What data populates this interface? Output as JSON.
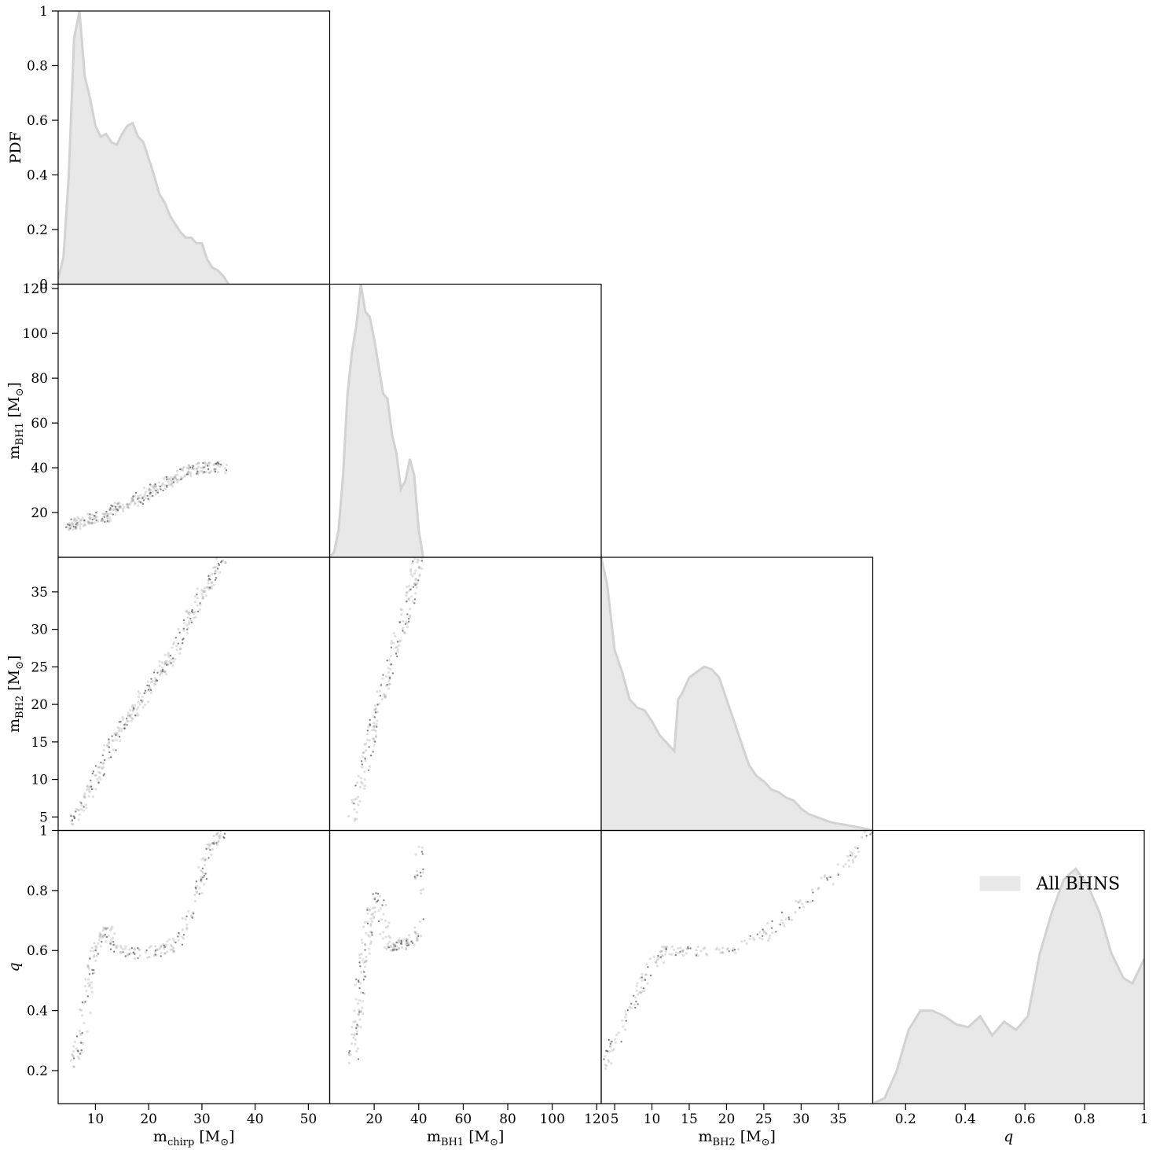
{
  "chart_data": {
    "type": "corner",
    "variables": [
      {
        "key": "mchirp",
        "label_main": "m",
        "label_sub": "chirp",
        "label_unit": " [M",
        "label_tail": "]",
        "lim": [
          3,
          54
        ],
        "ticks": [
          10,
          20,
          30,
          40,
          50
        ]
      },
      {
        "key": "mBH1",
        "label_main": "m",
        "label_sub": "BH1",
        "label_unit": " [M",
        "label_tail": "]",
        "lim": [
          0,
          122
        ],
        "ticks": [
          20,
          40,
          60,
          80,
          100,
          120
        ]
      },
      {
        "key": "mBH2",
        "label_main": "m",
        "label_sub": "BH2",
        "label_unit": " [M",
        "label_tail": "]",
        "lim": [
          3.2,
          39.6
        ],
        "ticks": [
          5,
          10,
          15,
          20,
          25,
          30,
          35
        ]
      },
      {
        "key": "q",
        "label_main": "q",
        "label_sub": "",
        "label_unit": "",
        "label_tail": "",
        "lim": [
          0.09,
          1.0
        ],
        "ticks": [
          0.2,
          0.4,
          0.6,
          0.8,
          1.0
        ]
      }
    ],
    "pdf_axis": {
      "label": "PDF",
      "lim": [
        0,
        1.0
      ],
      "ticks": [
        0.0,
        0.2,
        0.4,
        0.6,
        0.8,
        1.0
      ]
    },
    "row_axes": [
      {
        "ticks": [
          0.0,
          0.2,
          0.4,
          0.6,
          0.8,
          1.0
        ]
      },
      {
        "ticks": [
          20,
          40,
          60,
          80,
          100,
          120
        ]
      },
      {
        "ticks": [
          5,
          10,
          15,
          20,
          25,
          30,
          35
        ]
      },
      {
        "ticks": [
          0.2,
          0.4,
          0.6,
          0.8,
          1.0
        ]
      }
    ],
    "legend": {
      "label": "All BHNS",
      "position": "upper right",
      "color": "#e8e8e8"
    },
    "colors": {
      "hist_fill": "#e8e8e8",
      "hist_line": "#d2d2d2",
      "scatter": "#707070"
    },
    "histograms": {
      "mchirp": {
        "x": [
          3,
          4,
          5,
          6,
          7,
          8,
          9,
          10,
          11,
          12,
          13,
          14,
          15,
          16,
          17,
          18,
          19,
          20,
          21,
          22,
          23,
          24,
          25,
          26,
          27,
          28,
          29,
          30,
          31,
          32,
          33,
          34,
          35
        ],
        "y": [
          0.02,
          0.1,
          0.4,
          0.9,
          1.0,
          0.76,
          0.68,
          0.58,
          0.54,
          0.55,
          0.52,
          0.51,
          0.55,
          0.58,
          0.59,
          0.54,
          0.52,
          0.46,
          0.4,
          0.33,
          0.3,
          0.25,
          0.22,
          0.19,
          0.17,
          0.17,
          0.15,
          0.15,
          0.09,
          0.06,
          0.05,
          0.03,
          0.0
        ]
      },
      "mBH1": {
        "x": [
          0,
          2,
          4,
          6,
          8,
          10,
          12,
          14,
          16,
          18,
          20,
          22,
          24,
          26,
          28,
          30,
          32,
          34,
          36,
          38,
          40,
          42
        ],
        "y": [
          0.0,
          0.02,
          0.1,
          0.3,
          0.6,
          0.75,
          0.85,
          1.0,
          0.9,
          0.88,
          0.8,
          0.7,
          0.6,
          0.58,
          0.45,
          0.38,
          0.25,
          0.28,
          0.36,
          0.3,
          0.1,
          0.0
        ]
      },
      "mBH2": {
        "x": [
          3.2,
          4,
          5,
          6,
          7,
          8,
          9,
          10,
          11,
          12,
          13,
          13.5,
          14,
          15,
          16,
          17,
          18,
          19,
          20,
          21,
          22,
          23,
          24,
          25,
          26,
          27,
          28,
          29,
          30,
          31,
          32,
          33,
          34,
          35,
          36,
          37,
          38,
          39.6
        ],
        "y": [
          1.0,
          0.9,
          0.66,
          0.58,
          0.48,
          0.45,
          0.44,
          0.4,
          0.35,
          0.32,
          0.29,
          0.48,
          0.5,
          0.56,
          0.58,
          0.6,
          0.59,
          0.56,
          0.48,
          0.4,
          0.32,
          0.24,
          0.2,
          0.18,
          0.15,
          0.14,
          0.12,
          0.11,
          0.08,
          0.06,
          0.05,
          0.04,
          0.03,
          0.025,
          0.02,
          0.015,
          0.01,
          0.0
        ]
      },
      "q": {
        "x": [
          0.09,
          0.13,
          0.17,
          0.21,
          0.25,
          0.29,
          0.33,
          0.37,
          0.41,
          0.45,
          0.49,
          0.53,
          0.57,
          0.61,
          0.65,
          0.69,
          0.73,
          0.77,
          0.81,
          0.85,
          0.89,
          0.93,
          0.96,
          1.0
        ],
        "y": [
          0.0,
          0.02,
          0.12,
          0.27,
          0.34,
          0.34,
          0.32,
          0.29,
          0.28,
          0.32,
          0.25,
          0.3,
          0.27,
          0.32,
          0.55,
          0.7,
          0.82,
          0.86,
          0.8,
          0.7,
          0.55,
          0.46,
          0.44,
          0.53
        ]
      }
    },
    "scatter_density": {
      "mchirp_vs_mBH1": [
        [
          5,
          14
        ],
        [
          6,
          15
        ],
        [
          8,
          16
        ],
        [
          10,
          18
        ],
        [
          12,
          17
        ],
        [
          14,
          22
        ],
        [
          16,
          24
        ],
        [
          18,
          26
        ],
        [
          20,
          29
        ],
        [
          22,
          31
        ],
        [
          24,
          34
        ],
        [
          26,
          37
        ],
        [
          28,
          39
        ],
        [
          30,
          40
        ],
        [
          32,
          40
        ],
        [
          34,
          40
        ]
      ],
      "mchirp_vs_mBH2": [
        [
          5,
          4
        ],
        [
          8,
          7
        ],
        [
          10,
          10
        ],
        [
          12,
          13
        ],
        [
          14,
          16
        ],
        [
          16,
          18
        ],
        [
          18,
          20
        ],
        [
          20,
          22
        ],
        [
          22,
          24
        ],
        [
          24,
          26
        ],
        [
          26,
          29
        ],
        [
          28,
          32
        ],
        [
          30,
          35
        ],
        [
          32,
          37
        ],
        [
          34,
          39.6
        ]
      ],
      "mBH1_vs_mBH2": [
        [
          10,
          5
        ],
        [
          14,
          10
        ],
        [
          18,
          15
        ],
        [
          20,
          18
        ],
        [
          24,
          22
        ],
        [
          28,
          26
        ],
        [
          32,
          30
        ],
        [
          36,
          34
        ],
        [
          38,
          37
        ],
        [
          40,
          39.6
        ]
      ],
      "mchirp_vs_q": [
        [
          6,
          0.22
        ],
        [
          7,
          0.3
        ],
        [
          9,
          0.5
        ],
        [
          10,
          0.6
        ],
        [
          12,
          0.68
        ],
        [
          14,
          0.6
        ],
        [
          18,
          0.59
        ],
        [
          22,
          0.6
        ],
        [
          25,
          0.62
        ],
        [
          28,
          0.72
        ],
        [
          30,
          0.85
        ],
        [
          32,
          0.95
        ],
        [
          34,
          1.0
        ]
      ],
      "mBH1_vs_q": [
        [
          10,
          0.22
        ],
        [
          12,
          0.35
        ],
        [
          14,
          0.5
        ],
        [
          16,
          0.6
        ],
        [
          18,
          0.7
        ],
        [
          22,
          0.8
        ],
        [
          26,
          0.6
        ],
        [
          30,
          0.62
        ],
        [
          35,
          0.62
        ],
        [
          40,
          0.65
        ],
        [
          40,
          1.0
        ]
      ],
      "mBH2_vs_q": [
        [
          3.2,
          0.2
        ],
        [
          5,
          0.3
        ],
        [
          8,
          0.45
        ],
        [
          10,
          0.55
        ],
        [
          12,
          0.6
        ],
        [
          15,
          0.6
        ],
        [
          20,
          0.6
        ],
        [
          25,
          0.65
        ],
        [
          30,
          0.75
        ],
        [
          35,
          0.87
        ],
        [
          39.6,
          1.0
        ]
      ]
    }
  }
}
